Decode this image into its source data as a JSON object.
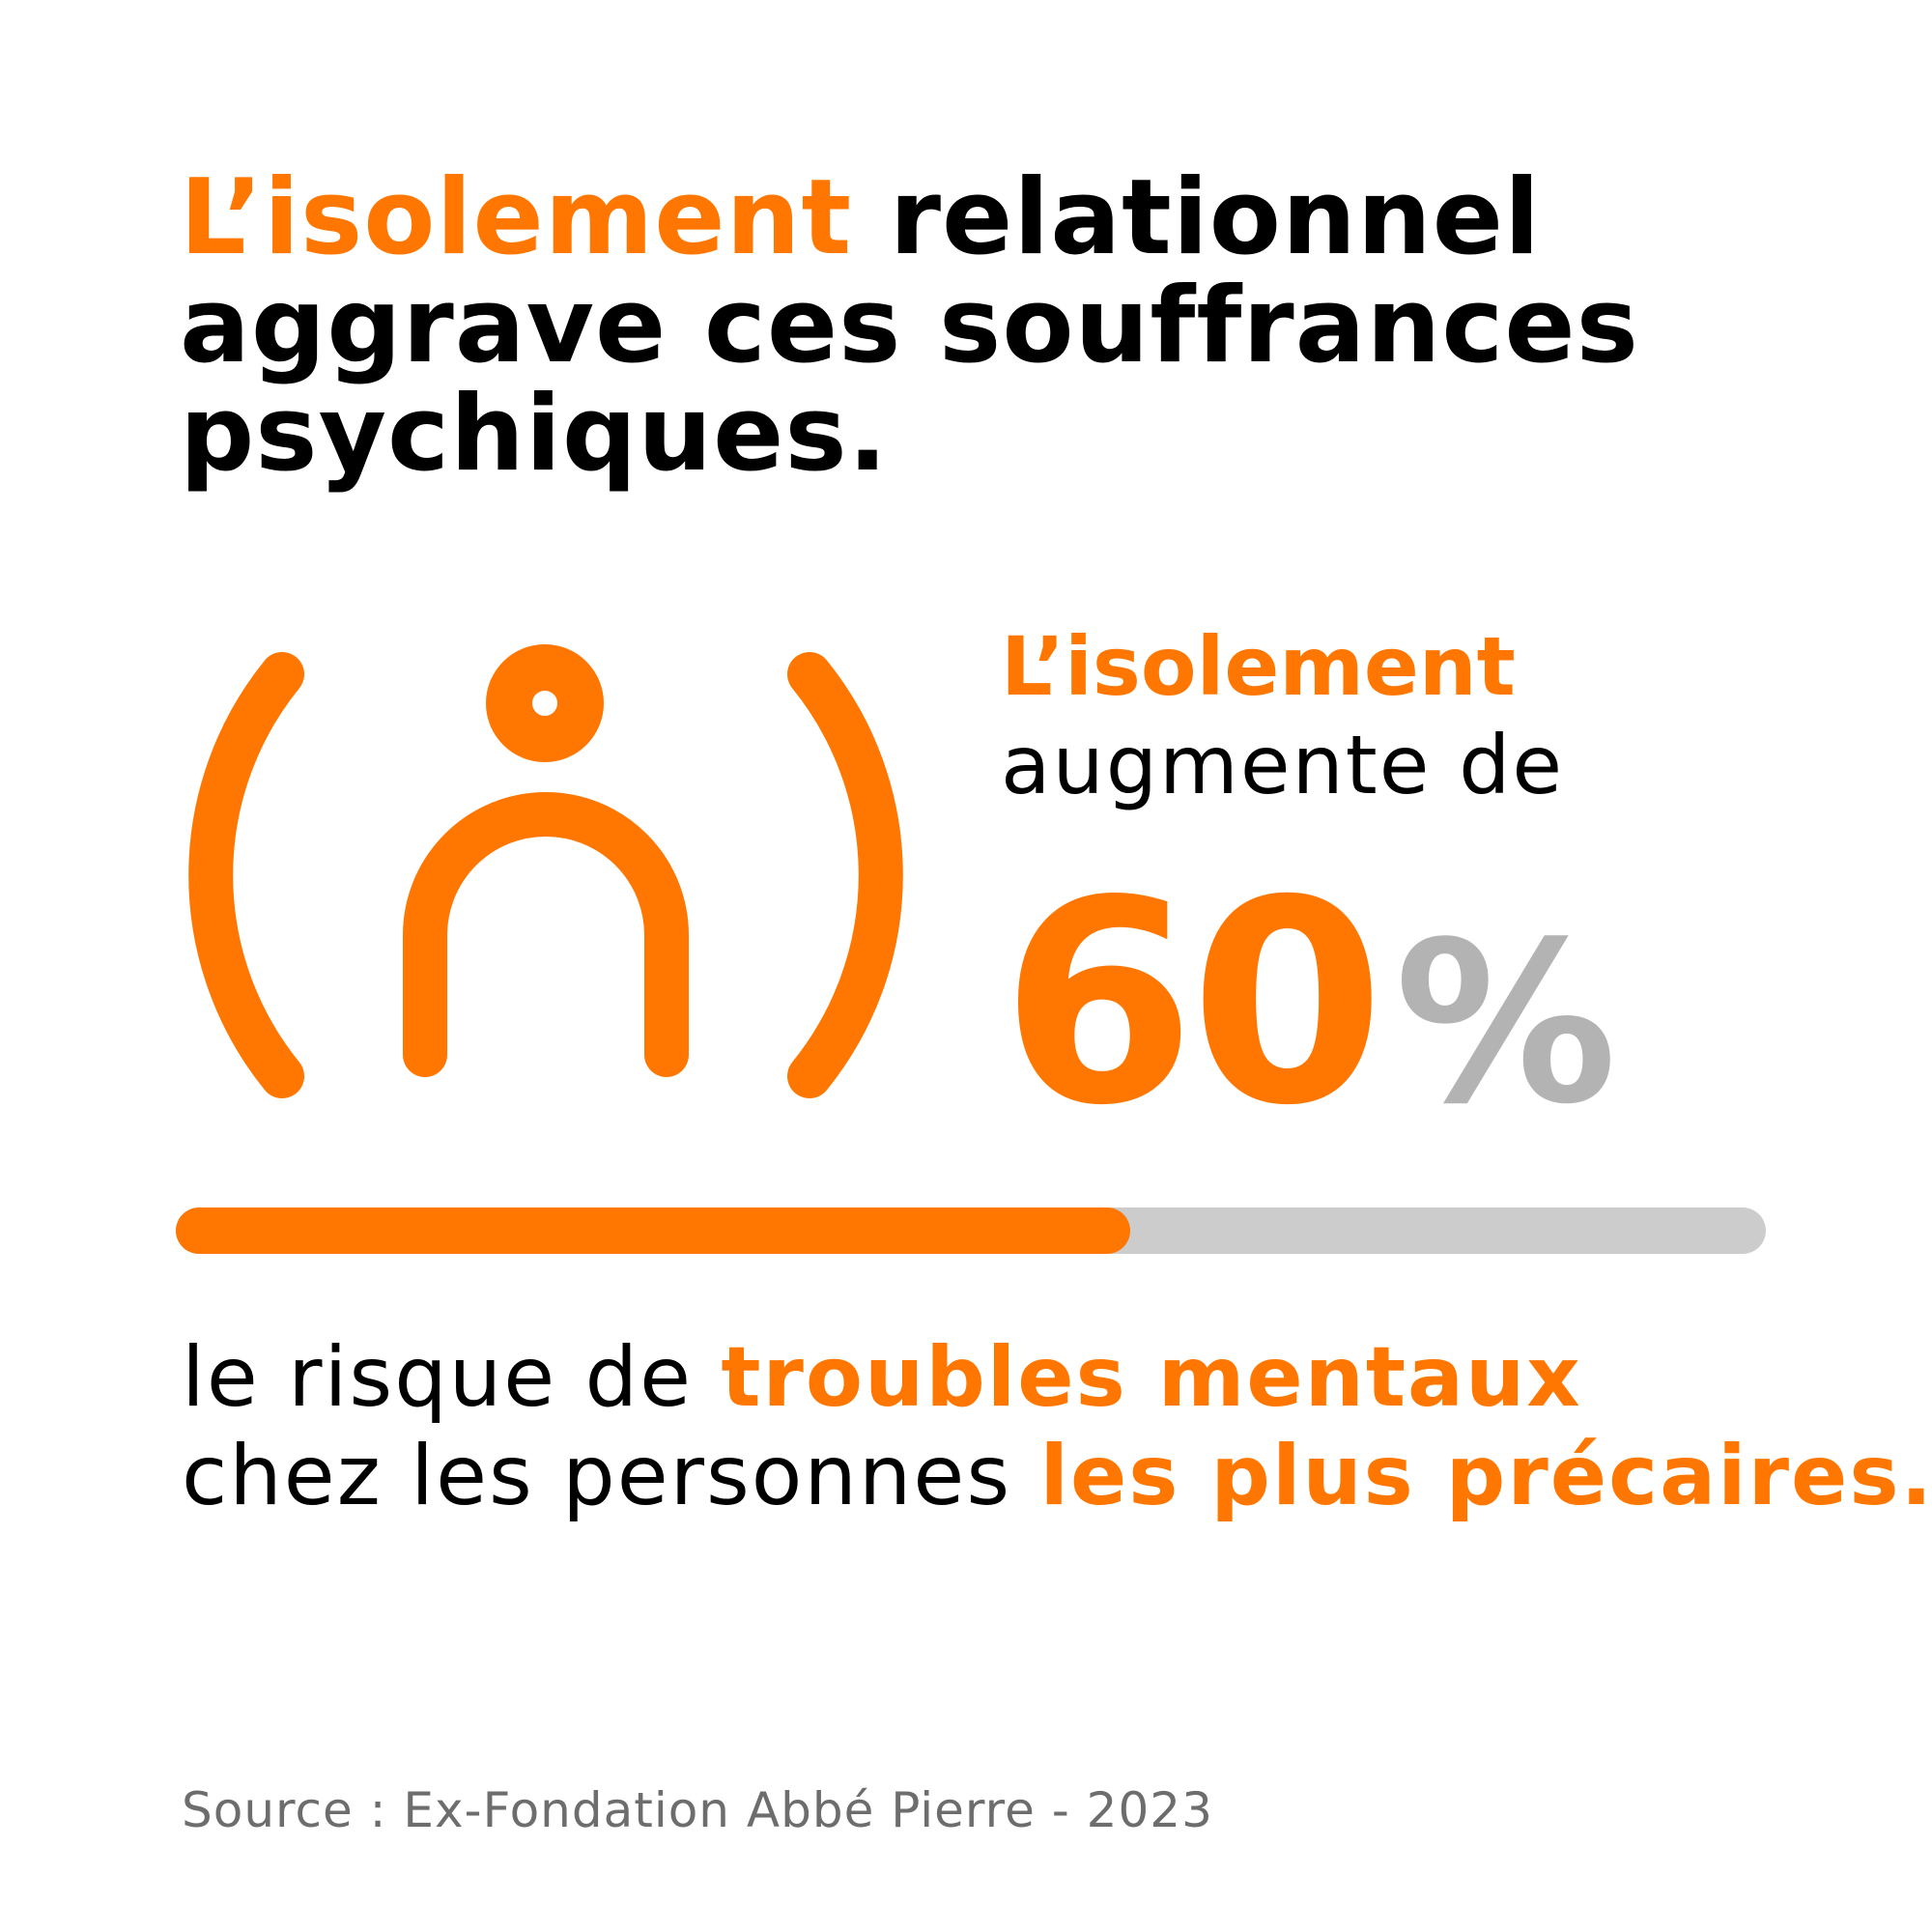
{
  "headline": {
    "highlight": "L’isolement",
    "line1_rest": "relationnel",
    "line2": "aggrave ces souffrances",
    "line3": "psychiques."
  },
  "stat": {
    "label_highlight": "L’isolement",
    "label_rest": "augmente de",
    "value": "60",
    "unit": "%",
    "progress_percent": 60
  },
  "description": {
    "part1": "le risque de ",
    "highlight1": "troubles mentaux",
    "part2": "chez les personnes ",
    "highlight2": "les plus précaires."
  },
  "source": "Source : Ex-Fondation Abbé Pierre - 2023",
  "colors": {
    "accent": "#ff7700",
    "track": "#cccccc",
    "percent": "#b3b3b3",
    "source": "#6d6d6d"
  },
  "icon": "isolated-person-icon"
}
